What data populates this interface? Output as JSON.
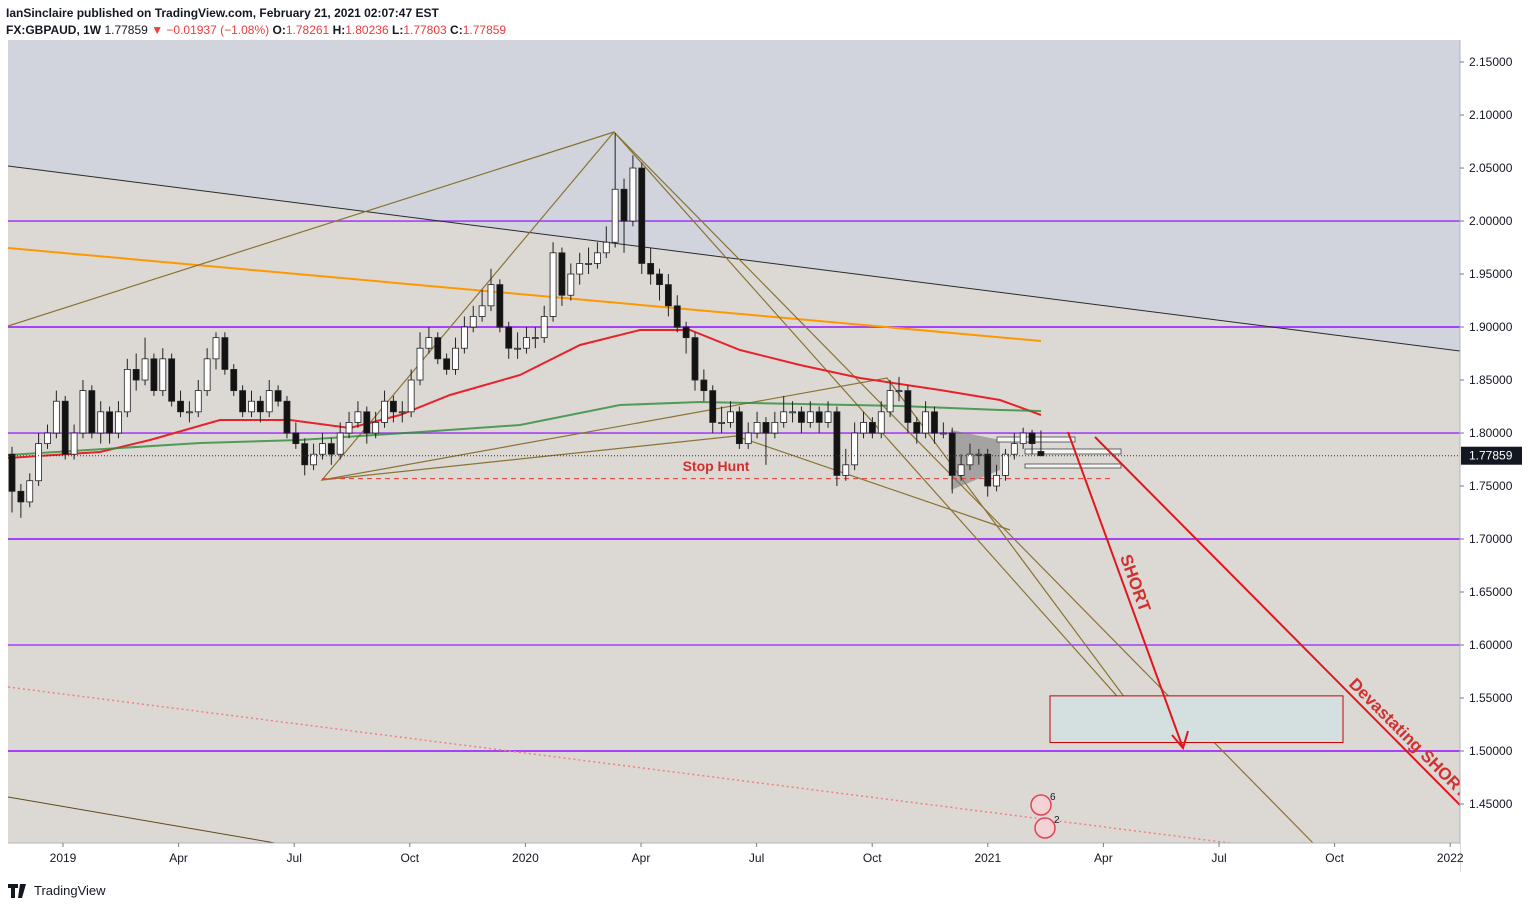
{
  "header": {
    "publisher": "IanSinclaire published on TradingView.com, February 21, 2021 02:07:47 EST",
    "symbol": "FX:GBPAUD, 1W",
    "change": "▼ −0.01937 (−1.08%)",
    "ohlc_labels": [
      "O:",
      "H:",
      "L:",
      "C:"
    ]
  },
  "chart_data": {
    "type": "candlestick",
    "candles": [
      [
        1.78,
        1.787,
        1.725,
        1.745
      ],
      [
        1.745,
        1.752,
        1.72,
        1.735
      ],
      [
        1.735,
        1.762,
        1.73,
        1.755
      ],
      [
        1.755,
        1.8,
        1.75,
        1.79
      ],
      [
        1.79,
        1.808,
        1.785,
        1.8
      ],
      [
        1.8,
        1.84,
        1.795,
        1.83
      ],
      [
        1.83,
        1.835,
        1.775,
        1.78
      ],
      [
        1.78,
        1.808,
        1.775,
        1.8
      ],
      [
        1.8,
        1.85,
        1.795,
        1.84
      ],
      [
        1.84,
        1.845,
        1.795,
        1.8
      ],
      [
        1.8,
        1.83,
        1.79,
        1.82
      ],
      [
        1.82,
        1.825,
        1.79,
        1.8
      ],
      [
        1.8,
        1.83,
        1.795,
        1.82
      ],
      [
        1.82,
        1.87,
        1.815,
        1.86
      ],
      [
        1.86,
        1.875,
        1.84,
        1.85
      ],
      [
        1.85,
        1.89,
        1.845,
        1.87
      ],
      [
        1.87,
        1.875,
        1.835,
        1.84
      ],
      [
        1.84,
        1.88,
        1.835,
        1.87
      ],
      [
        1.87,
        1.875,
        1.825,
        1.83
      ],
      [
        1.83,
        1.84,
        1.815,
        1.82
      ],
      [
        1.82,
        1.83,
        1.81,
        1.82
      ],
      [
        1.82,
        1.85,
        1.815,
        1.84
      ],
      [
        1.84,
        1.88,
        1.835,
        1.87
      ],
      [
        1.87,
        1.895,
        1.86,
        1.89
      ],
      [
        1.89,
        1.895,
        1.855,
        1.86
      ],
      [
        1.86,
        1.865,
        1.835,
        1.84
      ],
      [
        1.84,
        1.845,
        1.815,
        1.82
      ],
      [
        1.82,
        1.84,
        1.815,
        1.83
      ],
      [
        1.83,
        1.835,
        1.81,
        1.82
      ],
      [
        1.82,
        1.85,
        1.815,
        1.84
      ],
      [
        1.84,
        1.845,
        1.825,
        1.83
      ],
      [
        1.83,
        1.835,
        1.795,
        1.8
      ],
      [
        1.8,
        1.81,
        1.785,
        1.79
      ],
      [
        1.79,
        1.795,
        1.76,
        1.77
      ],
      [
        1.77,
        1.79,
        1.765,
        1.78
      ],
      [
        1.78,
        1.8,
        1.775,
        1.79
      ],
      [
        1.79,
        1.795,
        1.77,
        1.78
      ],
      [
        1.78,
        1.81,
        1.775,
        1.8
      ],
      [
        1.8,
        1.82,
        1.795,
        1.81
      ],
      [
        1.81,
        1.83,
        1.805,
        1.82
      ],
      [
        1.82,
        1.825,
        1.79,
        1.8
      ],
      [
        1.8,
        1.82,
        1.795,
        1.81
      ],
      [
        1.81,
        1.84,
        1.805,
        1.83
      ],
      [
        1.83,
        1.835,
        1.81,
        1.82
      ],
      [
        1.82,
        1.83,
        1.81,
        1.82
      ],
      [
        1.82,
        1.86,
        1.815,
        1.85
      ],
      [
        1.85,
        1.895,
        1.845,
        1.88
      ],
      [
        1.88,
        1.9,
        1.875,
        1.89
      ],
      [
        1.89,
        1.895,
        1.865,
        1.87
      ],
      [
        1.87,
        1.875,
        1.855,
        1.86
      ],
      [
        1.86,
        1.89,
        1.855,
        1.88
      ],
      [
        1.88,
        1.91,
        1.875,
        1.9
      ],
      [
        1.9,
        1.92,
        1.895,
        1.91
      ],
      [
        1.91,
        1.935,
        1.905,
        1.92
      ],
      [
        1.92,
        1.955,
        1.915,
        1.94
      ],
      [
        1.94,
        1.945,
        1.895,
        1.9
      ],
      [
        1.9,
        1.905,
        1.87,
        1.88
      ],
      [
        1.88,
        1.895,
        1.87,
        1.88
      ],
      [
        1.88,
        1.9,
        1.875,
        1.89
      ],
      [
        1.89,
        1.9,
        1.88,
        1.89
      ],
      [
        1.89,
        1.92,
        1.885,
        1.91
      ],
      [
        1.91,
        1.98,
        1.905,
        1.97
      ],
      [
        1.97,
        1.975,
        1.92,
        1.93
      ],
      [
        1.93,
        1.96,
        1.925,
        1.95
      ],
      [
        1.95,
        1.97,
        1.94,
        1.96
      ],
      [
        1.96,
        1.975,
        1.95,
        1.96
      ],
      [
        1.96,
        1.98,
        1.955,
        1.97
      ],
      [
        1.97,
        1.995,
        1.965,
        1.98
      ],
      [
        1.98,
        2.083,
        1.975,
        2.03
      ],
      [
        2.03,
        2.04,
        1.97,
        2.0
      ],
      [
        2.0,
        2.062,
        1.995,
        2.05
      ],
      [
        2.05,
        2.055,
        1.95,
        1.96
      ],
      [
        1.96,
        1.975,
        1.94,
        1.95
      ],
      [
        1.95,
        1.955,
        1.925,
        1.94
      ],
      [
        1.94,
        1.95,
        1.91,
        1.92
      ],
      [
        1.92,
        1.93,
        1.895,
        1.9
      ],
      [
        1.9,
        1.905,
        1.875,
        1.89
      ],
      [
        1.89,
        1.895,
        1.84,
        1.85
      ],
      [
        1.85,
        1.86,
        1.83,
        1.84
      ],
      [
        1.84,
        1.845,
        1.8,
        1.81
      ],
      [
        1.81,
        1.825,
        1.8,
        1.81
      ],
      [
        1.81,
        1.83,
        1.805,
        1.82
      ],
      [
        1.82,
        1.825,
        1.785,
        1.79
      ],
      [
        1.79,
        1.81,
        1.785,
        1.8
      ],
      [
        1.8,
        1.82,
        1.795,
        1.81
      ],
      [
        1.81,
        1.815,
        1.77,
        1.8
      ],
      [
        1.8,
        1.82,
        1.795,
        1.81
      ],
      [
        1.81,
        1.835,
        1.805,
        1.82
      ],
      [
        1.82,
        1.83,
        1.81,
        1.82
      ],
      [
        1.82,
        1.825,
        1.8,
        1.81
      ],
      [
        1.81,
        1.83,
        1.805,
        1.82
      ],
      [
        1.82,
        1.825,
        1.8,
        1.81
      ],
      [
        1.81,
        1.83,
        1.805,
        1.82
      ],
      [
        1.82,
        1.825,
        1.75,
        1.76
      ],
      [
        1.76,
        1.785,
        1.755,
        1.77
      ],
      [
        1.77,
        1.81,
        1.765,
        1.8
      ],
      [
        1.8,
        1.82,
        1.795,
        1.81
      ],
      [
        1.81,
        1.815,
        1.795,
        1.8
      ],
      [
        1.8,
        1.83,
        1.795,
        1.82
      ],
      [
        1.82,
        1.85,
        1.815,
        1.84
      ],
      [
        1.84,
        1.853,
        1.83,
        1.84
      ],
      [
        1.84,
        1.845,
        1.8,
        1.81
      ],
      [
        1.81,
        1.815,
        1.79,
        1.8
      ],
      [
        1.8,
        1.83,
        1.795,
        1.82
      ],
      [
        1.82,
        1.825,
        1.79,
        1.8
      ],
      [
        1.8,
        1.81,
        1.795,
        1.8
      ],
      [
        1.8,
        1.805,
        1.743,
        1.76
      ],
      [
        1.76,
        1.78,
        1.755,
        1.77
      ],
      [
        1.77,
        1.79,
        1.765,
        1.78
      ],
      [
        1.78,
        1.785,
        1.77,
        1.78
      ],
      [
        1.78,
        1.785,
        1.74,
        1.75
      ],
      [
        1.75,
        1.77,
        1.745,
        1.76
      ],
      [
        1.76,
        1.785,
        1.755,
        1.78
      ],
      [
        1.78,
        1.8,
        1.775,
        1.79
      ],
      [
        1.79,
        1.805,
        1.785,
        1.8
      ],
      [
        1.8,
        1.803,
        1.78,
        1.79
      ],
      [
        1.78261,
        1.80236,
        1.77803,
        1.77859
      ]
    ],
    "ylim": [
      1.4132,
      2.1708
    ],
    "yticks": [
      {
        "value": 2.15,
        "label": "2.15000"
      },
      {
        "value": 2.1,
        "label": "2.10000"
      },
      {
        "value": 2.05,
        "label": "2.05000"
      },
      {
        "value": 2.0,
        "label": "2.00000"
      },
      {
        "value": 1.95,
        "label": "1.95000"
      },
      {
        "value": 1.9,
        "label": "1.90000"
      },
      {
        "value": 1.85,
        "label": "1.85000"
      },
      {
        "value": 1.8,
        "label": "1.80000"
      },
      {
        "value": 1.75,
        "label": "1.75000"
      },
      {
        "value": 1.7,
        "label": "1.70000"
      },
      {
        "value": 1.65,
        "label": "1.65000"
      },
      {
        "value": 1.6,
        "label": "1.60000"
      },
      {
        "value": 1.55,
        "label": "1.55000"
      },
      {
        "value": 1.5,
        "label": "1.50000"
      },
      {
        "value": 1.45,
        "label": "1.45000"
      }
    ],
    "x_labels": [
      "2019",
      "Apr",
      "Jul",
      "Oct",
      "2020",
      "Apr",
      "Jul",
      "Oct",
      "2021",
      "Apr",
      "Jul",
      "Oct",
      "2022"
    ],
    "levels": [
      2.0,
      1.9,
      1.8,
      1.7,
      1.6,
      1.5
    ],
    "level_color": "#9c27ff",
    "up_color": "#ffffff",
    "down_color": "#131313",
    "annotations": {
      "stop_hunt": {
        "text": "Stop Hunt",
        "value": 1.757
      },
      "short": "SHORT",
      "devastating": "Devastating SHORT",
      "target_zone": [
        1.508,
        1.552
      ]
    },
    "badges": [
      6,
      2
    ]
  },
  "footer": {
    "logo": "TradingView"
  }
}
